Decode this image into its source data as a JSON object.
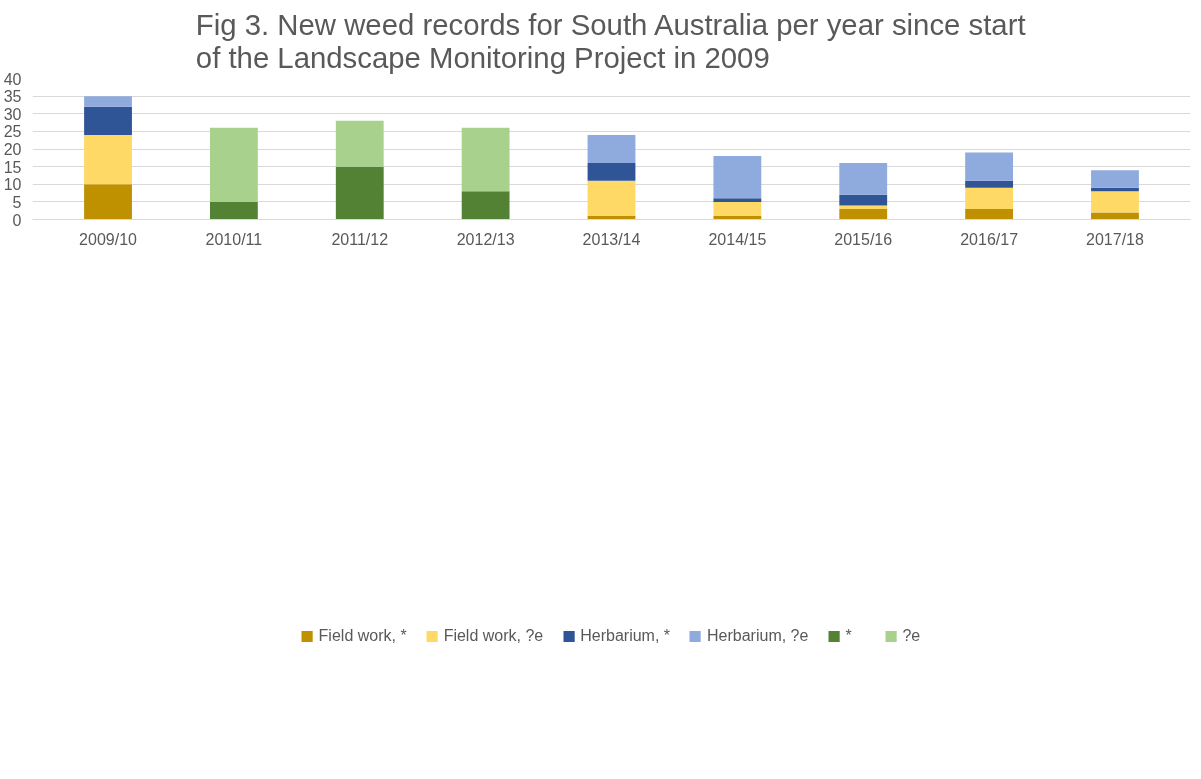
{
  "chart_data": {
    "type": "bar",
    "stacked": true,
    "title": "Fig 3. New weed records for South Australia per year since start of the Landscape Monitoring Project in 2009",
    "categories": [
      "2009/10",
      "2010/11",
      "2011/12",
      "2012/13",
      "2013/14",
      "2014/15",
      "2015/16",
      "2016/17",
      "2017/18"
    ],
    "series": [
      {
        "name": "Field work, *",
        "color": "#bf9000",
        "values": [
          10,
          null,
          null,
          null,
          1,
          1,
          3,
          3,
          2
        ]
      },
      {
        "name": "Field work, ?e",
        "color": "#ffd966",
        "values": [
          14,
          null,
          null,
          null,
          10,
          4,
          1,
          6,
          6
        ]
      },
      {
        "name": "Herbarium, *",
        "color": "#2f5597",
        "values": [
          8,
          null,
          null,
          null,
          5,
          1,
          3,
          2,
          1
        ]
      },
      {
        "name": "Herbarium, ?e",
        "color": "#8faadc",
        "values": [
          3,
          null,
          null,
          null,
          8,
          12,
          9,
          8,
          5
        ]
      },
      {
        "name": "*",
        "color": "#548235",
        "values": [
          null,
          5,
          15,
          8,
          null,
          null,
          null,
          null,
          null
        ]
      },
      {
        "name": "?e",
        "color": "#a9d18e",
        "values": [
          null,
          21,
          13,
          18,
          null,
          null,
          null,
          null,
          null
        ]
      }
    ],
    "ylim": [
      0,
      40
    ],
    "yticks": [
      0,
      5,
      10,
      15,
      20,
      25,
      30,
      35,
      40
    ],
    "grid": "y",
    "legend": "bottom"
  }
}
